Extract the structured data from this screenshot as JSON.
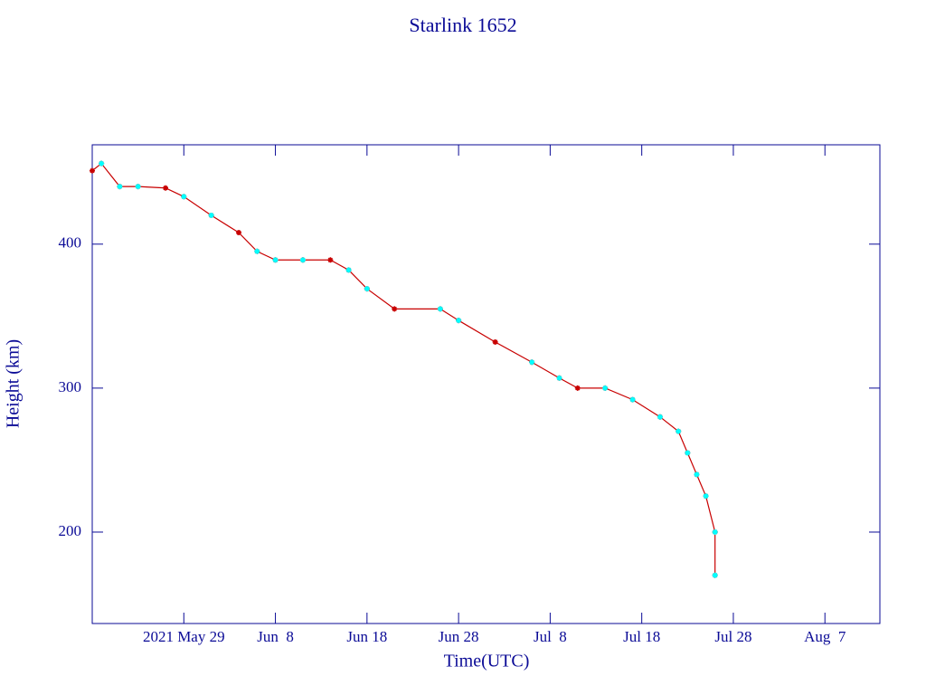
{
  "chart_data": {
    "type": "line",
    "title": "Starlink 1652",
    "x_label": "Time(UTC)",
    "y_label": "Height (km)",
    "x": [
      "2021-05-19",
      "2021-05-20",
      "2021-05-22",
      "2021-05-24",
      "2021-05-27",
      "2021-05-29",
      "2021-06-01",
      "2021-06-04",
      "2021-06-06",
      "2021-06-08",
      "2021-06-11",
      "2021-06-14",
      "2021-06-16",
      "2021-06-18",
      "2021-06-21",
      "2021-06-26",
      "2021-06-28",
      "2021-07-02",
      "2021-07-06",
      "2021-07-09",
      "2021-07-11",
      "2021-07-14",
      "2021-07-17",
      "2021-07-20",
      "2021-07-22",
      "2021-07-23",
      "2021-07-24",
      "2021-07-25",
      "2021-07-26",
      "2021-07-26"
    ],
    "series": [
      {
        "color": "#c80000",
        "line": true,
        "values": [
          451,
          456,
          440,
          440,
          439,
          433,
          420,
          408,
          395,
          389,
          389,
          389,
          382,
          369,
          355,
          355,
          347,
          332,
          318,
          307,
          300,
          300,
          292,
          280,
          270,
          255,
          240,
          225,
          200,
          170
        ]
      },
      {
        "color": "#00ffff",
        "line": false,
        "values": [
          null,
          456,
          440,
          440,
          null,
          433,
          420,
          null,
          395,
          389,
          389,
          null,
          382,
          369,
          null,
          355,
          347,
          null,
          318,
          307,
          null,
          300,
          292,
          280,
          270,
          255,
          240,
          225,
          200,
          170
        ]
      }
    ],
    "xlim": [
      "2021-05-19",
      "2021-08-13"
    ],
    "xticks": [
      {
        "value": "2021-05-29",
        "label": "2021 May 29"
      },
      {
        "value": "2021-06-08",
        "label": "Jun  8"
      },
      {
        "value": "2021-06-18",
        "label": "Jun 18"
      },
      {
        "value": "2021-06-28",
        "label": "Jun 28"
      },
      {
        "value": "2021-07-08",
        "label": "Jul  8"
      },
      {
        "value": "2021-07-18",
        "label": "Jul 18"
      },
      {
        "value": "2021-07-28",
        "label": "Jul 28"
      },
      {
        "value": "2021-08-07",
        "label": "Aug  7"
      }
    ],
    "ylim": [
      136.5,
      469
    ],
    "yticks": [
      200,
      300,
      400
    ],
    "grid": false
  }
}
